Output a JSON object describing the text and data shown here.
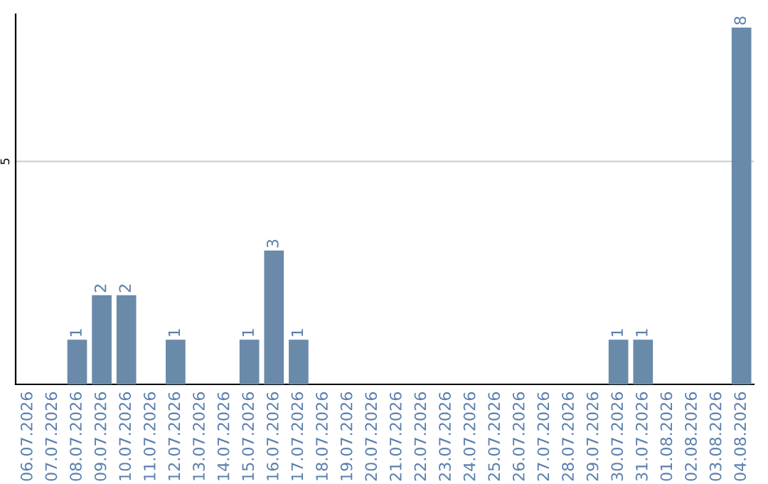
{
  "chart_data": {
    "type": "bar",
    "categories": [
      "06.07.2026",
      "07.07.2026",
      "08.07.2026",
      "09.07.2026",
      "10.07.2026",
      "11.07.2026",
      "12.07.2026",
      "13.07.2026",
      "14.07.2026",
      "15.07.2026",
      "16.07.2026",
      "17.07.2026",
      "18.07.2026",
      "19.07.2026",
      "20.07.2026",
      "21.07.2026",
      "22.07.2026",
      "23.07.2026",
      "24.07.2026",
      "25.07.2026",
      "26.07.2026",
      "27.07.2026",
      "28.07.2026",
      "29.07.2026",
      "30.07.2026",
      "31.07.2026",
      "01.08.2026",
      "02.08.2026",
      "03.08.2026",
      "04.08.2026"
    ],
    "values": [
      0,
      0,
      1,
      2,
      2,
      0,
      1,
      0,
      0,
      1,
      3,
      1,
      0,
      0,
      0,
      0,
      0,
      0,
      0,
      0,
      0,
      0,
      0,
      0,
      1,
      1,
      0,
      0,
      0,
      8
    ],
    "value_labels": [
      null,
      null,
      "1",
      "2",
      "2",
      null,
      "1",
      null,
      null,
      "1",
      "3",
      "1",
      null,
      null,
      null,
      null,
      null,
      null,
      null,
      null,
      null,
      null,
      null,
      null,
      "1",
      "1",
      null,
      null,
      null,
      "8"
    ],
    "color": "#6a8aaa",
    "ylim": [
      0,
      8.3
    ],
    "yticks": [
      5
    ],
    "grid": "y"
  }
}
